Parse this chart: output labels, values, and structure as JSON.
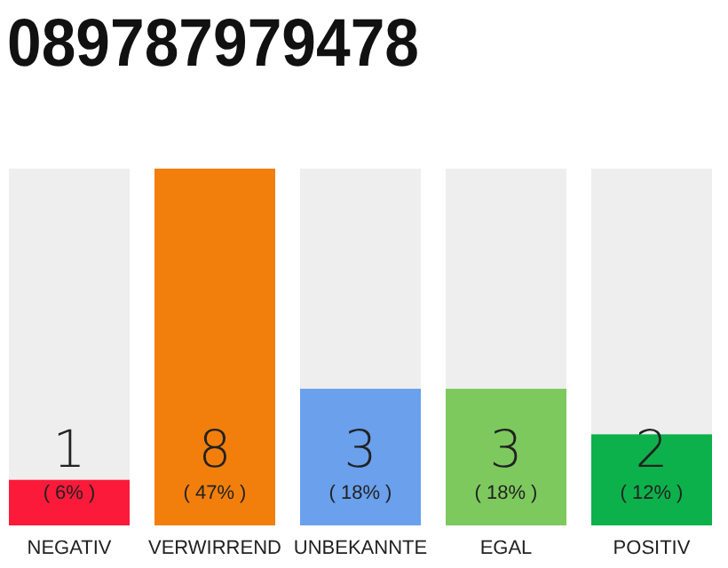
{
  "chart_data": {
    "type": "bar",
    "title": "089787979478",
    "categories": [
      "NEGATIV",
      "VERWIRREND",
      "UNBEKANNTE",
      "EGAL",
      "POSITIV"
    ],
    "values": [
      6,
      47,
      18,
      18,
      12
    ],
    "colors": [
      "#fb1a3a",
      "#f27f0c",
      "#6aa0ec",
      "#7dc95e",
      "#0db14b"
    ],
    "value_labels": [
      "( 6% )",
      "( 47% )",
      "( 18% )",
      "( 18% )",
      "( 12% )"
    ],
    "annotations": [
      "1",
      "8",
      "3",
      "3",
      "2"
    ]
  }
}
